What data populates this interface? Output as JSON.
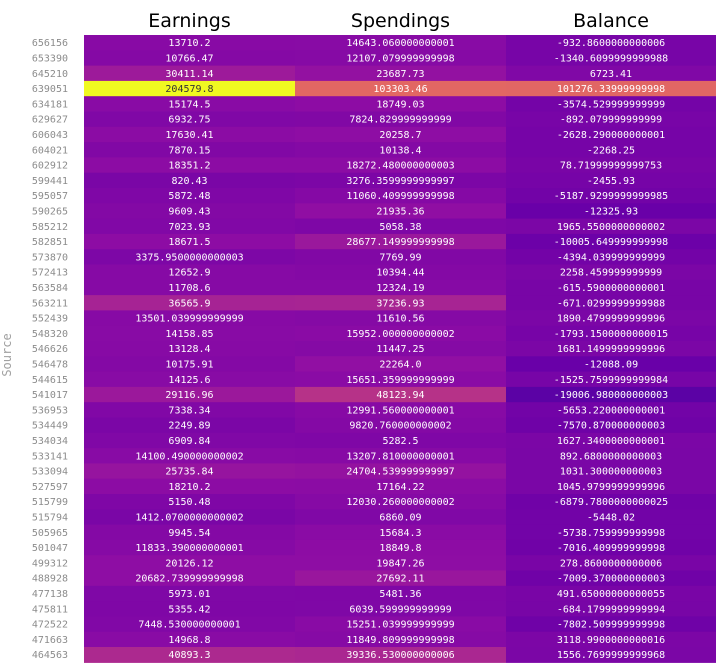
{
  "chart_data": {
    "type": "heatmap",
    "ylabel": "Source",
    "columns": [
      "Earnings",
      "Spendings",
      "Balance"
    ],
    "rows": [
      {
        "source": "656156",
        "values": [
          "13710.2",
          "14643.060000000001",
          "-932.8600000000006"
        ]
      },
      {
        "source": "653390",
        "values": [
          "10766.47",
          "12107.079999999998",
          "-1340.6099999999988"
        ]
      },
      {
        "source": "645210",
        "values": [
          "30411.14",
          "23687.73",
          "6723.41"
        ]
      },
      {
        "source": "639051",
        "values": [
          "204579.8",
          "103303.46",
          "101276.33999999998"
        ]
      },
      {
        "source": "634181",
        "values": [
          "15174.5",
          "18749.03",
          "-3574.529999999999"
        ]
      },
      {
        "source": "629627",
        "values": [
          "6932.75",
          "7824.829999999999",
          "-892.079999999999"
        ]
      },
      {
        "source": "606043",
        "values": [
          "17630.41",
          "20258.7",
          "-2628.290000000001"
        ]
      },
      {
        "source": "604021",
        "values": [
          "7870.15",
          "10138.4",
          "-2268.25"
        ]
      },
      {
        "source": "602912",
        "values": [
          "18351.2",
          "18272.480000000003",
          "78.71999999999753"
        ]
      },
      {
        "source": "599441",
        "values": [
          "820.43",
          "3276.3599999999997",
          "-2455.93"
        ]
      },
      {
        "source": "595057",
        "values": [
          "5872.48",
          "11060.409999999998",
          "-5187.9299999999985"
        ]
      },
      {
        "source": "590265",
        "values": [
          "9609.43",
          "21935.36",
          "-12325.93"
        ]
      },
      {
        "source": "585212",
        "values": [
          "7023.93",
          "5058.38",
          "1965.5500000000002"
        ]
      },
      {
        "source": "582851",
        "values": [
          "18671.5",
          "28677.149999999998",
          "-10005.649999999998"
        ]
      },
      {
        "source": "573870",
        "values": [
          "3375.9500000000003",
          "7769.99",
          "-4394.039999999999"
        ]
      },
      {
        "source": "572413",
        "values": [
          "12652.9",
          "10394.44",
          "2258.459999999999"
        ]
      },
      {
        "source": "563584",
        "values": [
          "11708.6",
          "12324.19",
          "-615.5900000000001"
        ]
      },
      {
        "source": "563211",
        "values": [
          "36565.9",
          "37236.93",
          "-671.0299999999988"
        ]
      },
      {
        "source": "552439",
        "values": [
          "13501.039999999999",
          "11610.56",
          "1890.4799999999996"
        ]
      },
      {
        "source": "548320",
        "values": [
          "14158.85",
          "15952.000000000002",
          "-1793.1500000000015"
        ]
      },
      {
        "source": "546626",
        "values": [
          "13128.4",
          "11447.25",
          "1681.1499999999996"
        ]
      },
      {
        "source": "546478",
        "values": [
          "10175.91",
          "22264.0",
          "-12088.09"
        ]
      },
      {
        "source": "544615",
        "values": [
          "14125.6",
          "15651.359999999999",
          "-1525.7599999999984"
        ]
      },
      {
        "source": "541017",
        "values": [
          "29116.96",
          "48123.94",
          "-19006.980000000003"
        ]
      },
      {
        "source": "536953",
        "values": [
          "7338.34",
          "12991.560000000001",
          "-5653.220000000001"
        ]
      },
      {
        "source": "534449",
        "values": [
          "2249.89",
          "9820.760000000002",
          "-7570.870000000003"
        ]
      },
      {
        "source": "534034",
        "values": [
          "6909.84",
          "5282.5",
          "1627.3400000000001"
        ]
      },
      {
        "source": "533141",
        "values": [
          "14100.490000000002",
          "13207.810000000001",
          "892.6800000000003"
        ]
      },
      {
        "source": "533094",
        "values": [
          "25735.84",
          "24704.539999999997",
          "1031.300000000003"
        ]
      },
      {
        "source": "527597",
        "values": [
          "18210.2",
          "17164.22",
          "1045.9799999999996"
        ]
      },
      {
        "source": "515799",
        "values": [
          "5150.48",
          "12030.260000000002",
          "-6879.7800000000025"
        ]
      },
      {
        "source": "515794",
        "values": [
          "1412.0700000000002",
          "6860.09",
          "-5448.02"
        ]
      },
      {
        "source": "505965",
        "values": [
          "9945.54",
          "15684.3",
          "-5738.759999999998"
        ]
      },
      {
        "source": "501047",
        "values": [
          "11833.390000000001",
          "18849.8",
          "-7016.409999999998"
        ]
      },
      {
        "source": "499312",
        "values": [
          "20126.12",
          "19847.26",
          "278.8600000000006"
        ]
      },
      {
        "source": "488928",
        "values": [
          "20682.739999999998",
          "27692.11",
          "-7009.370000000003"
        ]
      },
      {
        "source": "477138",
        "values": [
          "5973.01",
          "5481.36",
          "491.65000000000055"
        ]
      },
      {
        "source": "475811",
        "values": [
          "5355.42",
          "6039.599999999999",
          "-684.1799999999994"
        ]
      },
      {
        "source": "472522",
        "values": [
          "7448.530000000001",
          "15251.039999999999",
          "-7802.509999999998"
        ]
      },
      {
        "source": "471663",
        "values": [
          "14968.8",
          "11849.809999999998",
          "3118.9900000000016"
        ]
      },
      {
        "source": "464563",
        "values": [
          "40893.3",
          "39336.530000000006",
          "1556.7699999999968"
        ]
      }
    ]
  }
}
